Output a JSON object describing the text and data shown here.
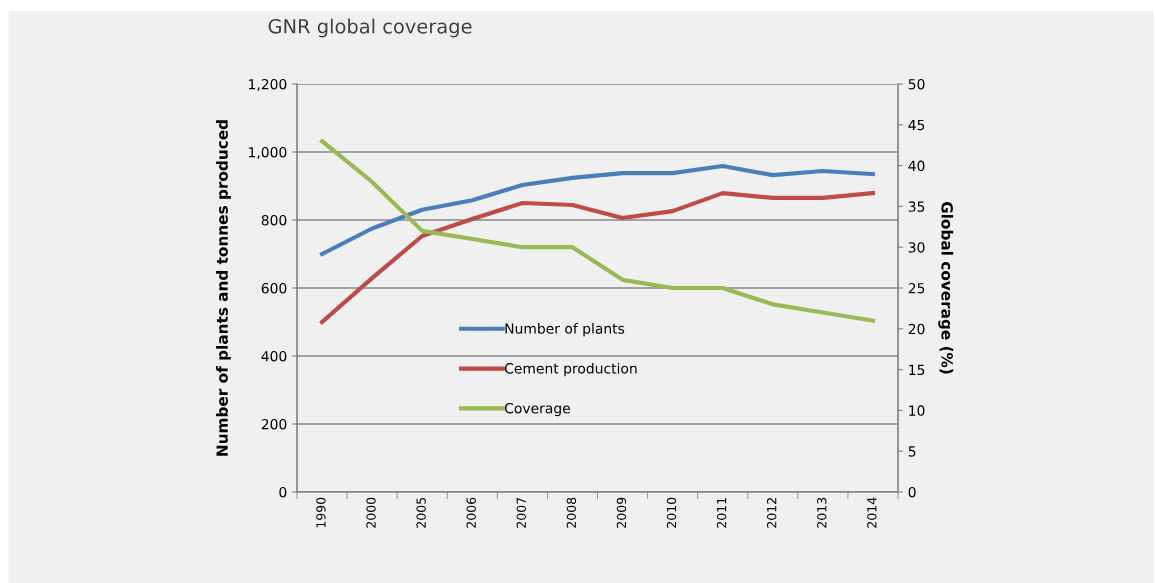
{
  "chart_data": {
    "type": "line",
    "title": "GNR global coverage",
    "ylabel": "Number of plants and tonnes produced",
    "y2label": "Global coverage (%)",
    "categories": [
      "1990",
      "2000",
      "2005",
      "2006",
      "2007",
      "2008",
      "2009",
      "2010",
      "2011",
      "2012",
      "2013",
      "2014"
    ],
    "series": [
      {
        "name": "Number of plants",
        "color": "#4a7ebb",
        "values": [
          700,
          775,
          830,
          858,
          903,
          924,
          938,
          938,
          959,
          932,
          944,
          935
        ]
      },
      {
        "name": "Cement production",
        "color": "#be4b48",
        "values": [
          500,
          629,
          753,
          803,
          850,
          844,
          806,
          826,
          879,
          865,
          865,
          879
        ]
      },
      {
        "name": "Coverage",
        "color": "#98b954",
        "axis": "y2",
        "values": [
          43,
          38,
          32,
          31,
          30,
          30,
          26,
          25,
          25,
          23,
          22,
          21
        ]
      }
    ],
    "ylim": [
      0,
      1200
    ],
    "yticks": [
      0,
      200,
      400,
      600,
      800,
      {
        "value": 1000,
        "label": "1,000"
      },
      {
        "value": 1200,
        "label": "1,200"
      }
    ],
    "y2lim": [
      0,
      50
    ],
    "y2ticks": [
      0,
      5,
      10,
      15,
      20,
      25,
      30,
      35,
      40,
      45,
      50
    ],
    "grid": "y",
    "legend": "center",
    "marker": "none",
    "line_style": "solid"
  }
}
